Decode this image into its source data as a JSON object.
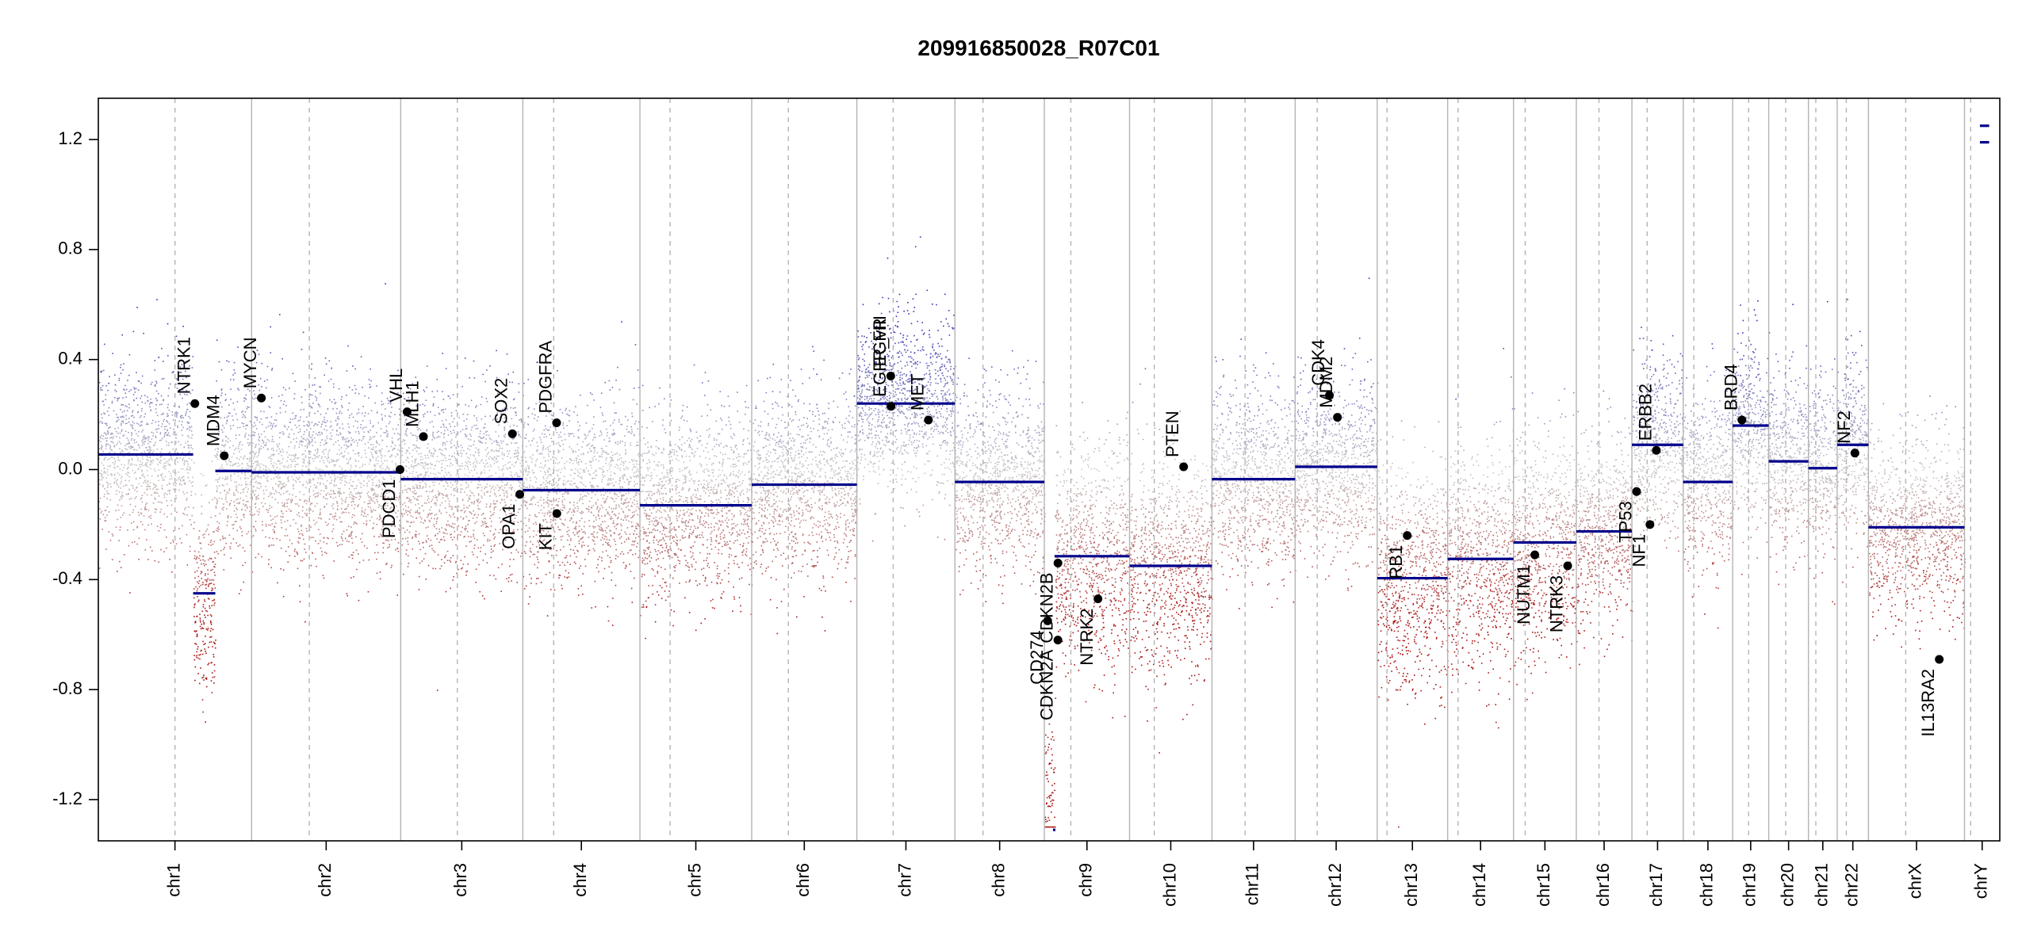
{
  "chart_data": {
    "type": "scatter",
    "title": "209916850028_R07C01",
    "xlabel": "",
    "ylabel": "",
    "ylim": [
      -1.35,
      1.35
    ],
    "y_ticks": [
      1.2,
      0.8,
      0.4,
      0.0,
      -0.4,
      -0.8,
      -1.2
    ],
    "y_tick_labels": [
      "1.2",
      "0.8",
      "0.4",
      "0.0",
      "-0.4",
      "-0.8",
      "-1.2"
    ],
    "colors": {
      "gain": "#3333b3",
      "loss": "#b31a1a",
      "neutral": "#a0a0a0",
      "segment": "#00008b",
      "gene": "#000000",
      "boundary": "#b4b4b4"
    },
    "chromosomes": [
      {
        "name": "chr1",
        "start": 0,
        "end": 248.96,
        "centromere": 124.5
      },
      {
        "name": "chr2",
        "start": 248.96,
        "end": 491.15,
        "centromere": 342.7
      },
      {
        "name": "chr3",
        "start": 491.15,
        "end": 689.45,
        "centromere": 583.1
      },
      {
        "name": "chr4",
        "start": 689.45,
        "end": 879.66,
        "centromere": 739.6
      },
      {
        "name": "chr5",
        "start": 879.66,
        "end": 1061.2,
        "centromere": 928.6
      },
      {
        "name": "chr6",
        "start": 1061.2,
        "end": 1232.0,
        "centromere": 1120.7
      },
      {
        "name": "chr7",
        "start": 1232.0,
        "end": 1391.3,
        "centromere": 1291.0
      },
      {
        "name": "chr8",
        "start": 1391.3,
        "end": 1536.5,
        "centromere": 1436.9
      },
      {
        "name": "chr9",
        "start": 1536.5,
        "end": 1674.9,
        "centromere": 1579.5
      },
      {
        "name": "chr10",
        "start": 1674.9,
        "end": 1808.7,
        "centromere": 1715.0
      },
      {
        "name": "chr11",
        "start": 1808.7,
        "end": 1943.8,
        "centromere": 1862.5
      },
      {
        "name": "chr12",
        "start": 1943.8,
        "end": 2077.1,
        "centromere": 1979.7
      },
      {
        "name": "chr13",
        "start": 2077.1,
        "end": 2191.5,
        "centromere": 2093.1
      },
      {
        "name": "chr14",
        "start": 2191.5,
        "end": 2298.5,
        "centromere": 2208.5
      },
      {
        "name": "chr15",
        "start": 2298.5,
        "end": 2400.5,
        "centromere": 2317.5
      },
      {
        "name": "chr16",
        "start": 2400.5,
        "end": 2490.8,
        "centromere": 2437.3
      },
      {
        "name": "chr17",
        "start": 2490.8,
        "end": 2574.1,
        "centromere": 2515.5
      },
      {
        "name": "chr18",
        "start": 2574.1,
        "end": 2654.4,
        "centromere": 2591.3
      },
      {
        "name": "chr19",
        "start": 2654.4,
        "end": 2713.0,
        "centromere": 2680.3
      },
      {
        "name": "chr20",
        "start": 2713.0,
        "end": 2777.5,
        "centromere": 2740.6
      },
      {
        "name": "chr21",
        "start": 2777.5,
        "end": 2824.2,
        "centromere": 2789.5
      },
      {
        "name": "chr22",
        "start": 2824.2,
        "end": 2875.0,
        "centromere": 2839.0
      },
      {
        "name": "chrX",
        "start": 2875.0,
        "end": 3031.0,
        "centromere": 2935.5
      },
      {
        "name": "chrY",
        "start": 3031.0,
        "end": 3088.3,
        "centromere": 3041.0
      }
    ],
    "segments": [
      {
        "chr": "chr1",
        "x0": 0,
        "x1": 154.0,
        "y": 0.055
      },
      {
        "chr": "chr1",
        "x0": 154.0,
        "x1": 190.0,
        "y": -0.45
      },
      {
        "chr": "chr1",
        "x0": 190.0,
        "x1": 248.96,
        "y": -0.005
      },
      {
        "chr": "chr2",
        "x0": 248.96,
        "x1": 491.15,
        "y": -0.01
      },
      {
        "chr": "chr3",
        "x0": 491.15,
        "x1": 689.45,
        "y": -0.035
      },
      {
        "chr": "chr4",
        "x0": 689.45,
        "x1": 879.66,
        "y": -0.075
      },
      {
        "chr": "chr5",
        "x0": 879.66,
        "x1": 1061.2,
        "y": -0.13
      },
      {
        "chr": "chr6",
        "x0": 1061.2,
        "x1": 1232.0,
        "y": -0.055
      },
      {
        "chr": "chr7",
        "x0": 1232.0,
        "x1": 1391.3,
        "y": 0.24
      },
      {
        "chr": "chr8",
        "x0": 1391.3,
        "x1": 1536.5,
        "y": -0.045
      },
      {
        "chr": "chr9",
        "x0": 1536.5,
        "x1": 1553.0,
        "y": -1.31
      },
      {
        "chr": "chr9",
        "x0": 1553.0,
        "x1": 1674.9,
        "y": -0.315
      },
      {
        "chr": "chr10",
        "x0": 1674.9,
        "x1": 1808.7,
        "y": -0.35
      },
      {
        "chr": "chr11",
        "x0": 1808.7,
        "x1": 1943.8,
        "y": -0.035
      },
      {
        "chr": "chr12",
        "x0": 1943.8,
        "x1": 2077.1,
        "y": 0.01
      },
      {
        "chr": "chr13",
        "x0": 2077.1,
        "x1": 2191.5,
        "y": -0.395
      },
      {
        "chr": "chr14",
        "x0": 2191.5,
        "x1": 2298.5,
        "y": -0.325
      },
      {
        "chr": "chr15",
        "x0": 2298.5,
        "x1": 2400.5,
        "y": -0.265
      },
      {
        "chr": "chr16",
        "x0": 2400.5,
        "x1": 2490.8,
        "y": -0.225
      },
      {
        "chr": "chr17",
        "x0": 2490.8,
        "x1": 2574.1,
        "y": 0.09
      },
      {
        "chr": "chr18",
        "x0": 2574.1,
        "x1": 2654.4,
        "y": -0.045
      },
      {
        "chr": "chr19",
        "x0": 2654.4,
        "x1": 2713.0,
        "y": 0.16
      },
      {
        "chr": "chr20",
        "x0": 2713.0,
        "x1": 2777.5,
        "y": 0.03
      },
      {
        "chr": "chr21",
        "x0": 2777.5,
        "x1": 2824.2,
        "y": 0.005
      },
      {
        "chr": "chr22",
        "x0": 2824.2,
        "x1": 2875.0,
        "y": 0.09
      },
      {
        "chr": "chrX",
        "x0": 2875.0,
        "x1": 3031.0,
        "y": -0.21
      },
      {
        "chr": "chrY",
        "x0": 3031.0,
        "x1": 3088.3,
        "y": 1.19
      },
      {
        "chr": "chrY",
        "x0": 3031.0,
        "x1": 3088.3,
        "y": 1.25
      }
    ],
    "genes": [
      {
        "name": "NTRK1",
        "x": 156.8,
        "y": 0.24,
        "label": "above"
      },
      {
        "name": "MDM4",
        "x": 204.5,
        "y": 0.05,
        "label": "above"
      },
      {
        "name": "MYCN",
        "x": 264.8,
        "y": 0.26,
        "label": "above"
      },
      {
        "name": "PDCD1",
        "x": 490.0,
        "y": 0.0,
        "label": "below"
      },
      {
        "name": "VHL",
        "x": 501.5,
        "y": 0.21,
        "label": "above"
      },
      {
        "name": "MLH1",
        "x": 528.0,
        "y": 0.12,
        "label": "above"
      },
      {
        "name": "SOX2",
        "x": 672.5,
        "y": 0.13,
        "label": "above"
      },
      {
        "name": "OPA1",
        "x": 684.5,
        "y": -0.09,
        "label": "below"
      },
      {
        "name": "PDGFRA",
        "x": 744.3,
        "y": 0.17,
        "label": "above"
      },
      {
        "name": "KIT",
        "x": 744.7,
        "y": -0.16,
        "label": "below"
      },
      {
        "name": "EGFR",
        "x": 1287.0,
        "y": 0.34,
        "label": "above"
      },
      {
        "name": "EGFR_vIII",
        "x": 1287.5,
        "y": 0.23,
        "label": "above"
      },
      {
        "name": "MET",
        "x": 1348.2,
        "y": 0.18,
        "label": "above"
      },
      {
        "name": "CD274",
        "x": 1541.9,
        "y": -0.55,
        "label": "below"
      },
      {
        "name": "CDKN2A",
        "x": 1558.5,
        "y": -0.62,
        "label": "below"
      },
      {
        "name": "CDKN2B",
        "x": 1558.6,
        "y": -0.34,
        "label": "below"
      },
      {
        "name": "NTRK2",
        "x": 1623.6,
        "y": -0.47,
        "label": "below"
      },
      {
        "name": "PTEN",
        "x": 1762.7,
        "y": 0.01,
        "label": "above"
      },
      {
        "name": "CDK4",
        "x": 1999.5,
        "y": 0.27,
        "label": "above"
      },
      {
        "name": "MDM2",
        "x": 2012.5,
        "y": 0.19,
        "label": "above"
      },
      {
        "name": "RB1",
        "x": 2125.9,
        "y": -0.24,
        "label": "below"
      },
      {
        "name": "NUTM1",
        "x": 2333.1,
        "y": -0.31,
        "label": "below"
      },
      {
        "name": "NTRK3",
        "x": 2386.5,
        "y": -0.35,
        "label": "below"
      },
      {
        "name": "TP53",
        "x": 2498.4,
        "y": -0.08,
        "label": "below"
      },
      {
        "name": "NF1",
        "x": 2520.1,
        "y": -0.2,
        "label": "below"
      },
      {
        "name": "ERBB2",
        "x": 2530.5,
        "y": 0.07,
        "label": "above"
      },
      {
        "name": "BRD4",
        "x": 2669.5,
        "y": 0.18,
        "label": "above"
      },
      {
        "name": "NF2",
        "x": 2853.0,
        "y": 0.06,
        "label": "above"
      },
      {
        "name": "IL13RA2",
        "x": 2990.0,
        "y": -0.69,
        "label": "below"
      }
    ],
    "point_profile_note": "probe-level log2 intensity ratios, several thousand points per chromosome, spread around each segment mean"
  }
}
